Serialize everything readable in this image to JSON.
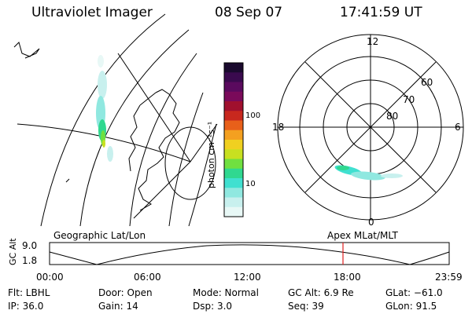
{
  "header": {
    "instrument": "Ultraviolet Imager",
    "date": "08 Sep 07",
    "time": "17:41:59 UT"
  },
  "left_panel": {
    "caption": "Geographic Lat/Lon"
  },
  "right_panel": {
    "caption": "Apex MLat/MLT",
    "mlt_labels": [
      "12",
      "18",
      "6",
      "0"
    ],
    "lat_labels": [
      "60",
      "70",
      "80"
    ]
  },
  "colorbar": {
    "unit_label": "photon cm⁻²s⁻¹",
    "tick_labels": [
      "100",
      "10"
    ],
    "colors": [
      "#1a0a2e",
      "#3a0a4e",
      "#5a0a5e",
      "#7a0a5a",
      "#a0102e",
      "#c8281e",
      "#e8601a",
      "#f4a020",
      "#f0d020",
      "#c8e020",
      "#70e040",
      "#30d890",
      "#40e0d0",
      "#90e8e0",
      "#c8f0ee",
      "#e8f8f6"
    ]
  },
  "timeline": {
    "y_label": "GC Alt",
    "y_ticks": [
      "9.0",
      "1.8"
    ],
    "time_labels": [
      "00:00",
      "06:00",
      "12:00",
      "18:00",
      "23:59"
    ],
    "marker_color": "#e02020"
  },
  "info": {
    "filter": "Flt: LBHL",
    "ip": "IP: 36.0",
    "door": "Door: Open",
    "gain": "Gain: 14",
    "mode": "Mode: Normal",
    "dsp": "Dsp:    3.0",
    "gc_alt": "GC Alt: 6.9 Re",
    "seq": "Seq: 39",
    "glat": "GLat: −61.0",
    "glon": "GLon:  91.5"
  }
}
